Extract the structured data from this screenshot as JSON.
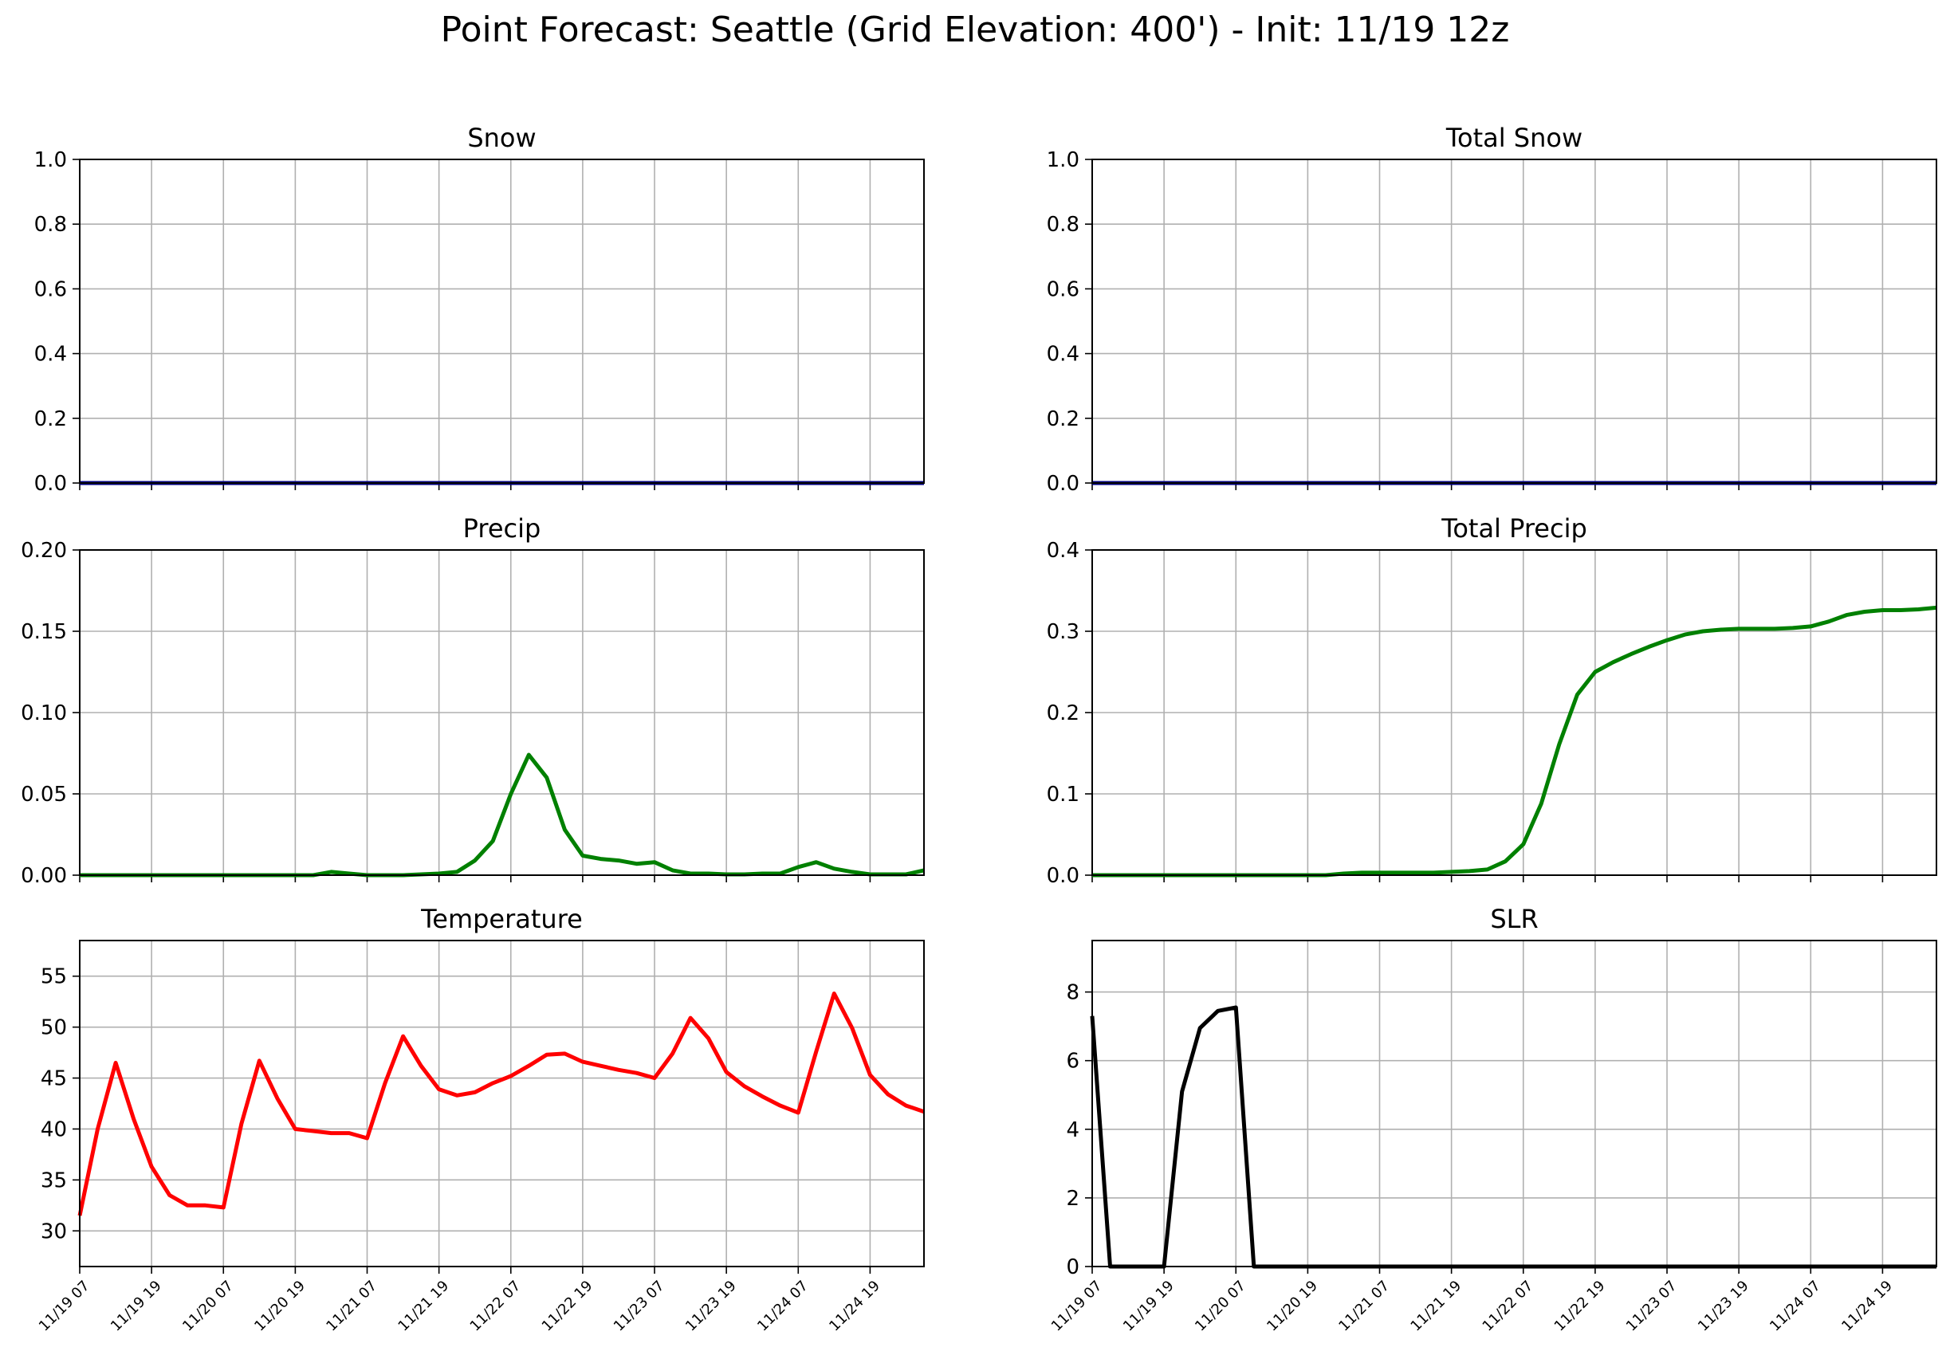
{
  "figure": {
    "title": "Point Forecast: Seattle (Grid Elevation: 400') - Init: 11/19 12z"
  },
  "chart_data": [
    {
      "id": "snow",
      "type": "line",
      "title": "Snow",
      "ylim": [
        0,
        1.0
      ],
      "yticks": [
        "0.0",
        "0.2",
        "0.4",
        "0.6",
        "0.8",
        "1.0"
      ],
      "ytick_values": [
        0,
        0.2,
        0.4,
        0.6,
        0.8,
        1.0
      ],
      "xticks": [
        "11/19 07",
        "11/19 19",
        "11/20 07",
        "11/20 19",
        "11/21 07",
        "11/21 19",
        "11/22 07",
        "11/22 19",
        "11/23 07",
        "11/23 19",
        "11/24 07",
        "11/24 19"
      ],
      "xtick_labels_visible": false,
      "grid": true,
      "color": "#000080",
      "series": [
        {
          "x": [
            0,
            141
          ],
          "y": [
            0,
            0
          ]
        }
      ]
    },
    {
      "id": "total-snow",
      "type": "line",
      "title": "Total Snow",
      "ylim": [
        0,
        1.0
      ],
      "yticks": [
        "0.0",
        "0.2",
        "0.4",
        "0.6",
        "0.8",
        "1.0"
      ],
      "ytick_values": [
        0,
        0.2,
        0.4,
        0.6,
        0.8,
        1.0
      ],
      "xticks": [
        "11/19 07",
        "11/19 19",
        "11/20 07",
        "11/20 19",
        "11/21 07",
        "11/21 19",
        "11/22 07",
        "11/22 19",
        "11/23 07",
        "11/23 19",
        "11/24 07",
        "11/24 19"
      ],
      "xtick_labels_visible": false,
      "grid": true,
      "color": "#000080",
      "series": [
        {
          "x": [
            0,
            141
          ],
          "y": [
            0,
            0
          ]
        }
      ]
    },
    {
      "id": "precip",
      "type": "line",
      "title": "Precip",
      "ylim": [
        0,
        0.2
      ],
      "yticks": [
        "0.00",
        "0.05",
        "0.10",
        "0.15",
        "0.20"
      ],
      "ytick_values": [
        0,
        0.05,
        0.1,
        0.15,
        0.2
      ],
      "xticks": [
        "11/19 07",
        "11/19 19",
        "11/20 07",
        "11/20 19",
        "11/21 07",
        "11/21 19",
        "11/22 07",
        "11/22 19",
        "11/23 07",
        "11/23 19",
        "11/24 07",
        "11/24 19"
      ],
      "xtick_labels_visible": false,
      "grid": true,
      "color": "#008000",
      "series": [
        {
          "x": [
            0,
            12,
            24,
            36,
            39,
            42,
            45,
            48,
            51,
            54,
            57,
            60,
            63,
            66,
            69,
            72,
            75,
            78,
            81,
            84,
            87,
            90,
            93,
            96,
            99,
            102,
            105,
            108,
            111,
            114,
            117,
            120,
            123,
            126,
            129,
            132,
            135,
            138,
            141
          ],
          "y": [
            0,
            0,
            0,
            0,
            0,
            0.002,
            0.001,
            0,
            0,
            0,
            0.0005,
            0.001,
            0.002,
            0.009,
            0.021,
            0.05,
            0.074,
            0.06,
            0.028,
            0.012,
            0.01,
            0.009,
            0.007,
            0.008,
            0.003,
            0.001,
            0.001,
            0.0005,
            0.0005,
            0.001,
            0.001,
            0.005,
            0.008,
            0.004,
            0.002,
            0.0005,
            0.0005,
            0.0005,
            0.003
          ]
        }
      ]
    },
    {
      "id": "total-precip",
      "type": "line",
      "title": "Total Precip",
      "ylim": [
        0,
        0.4
      ],
      "yticks": [
        "0.0",
        "0.1",
        "0.2",
        "0.3",
        "0.4"
      ],
      "ytick_values": [
        0,
        0.1,
        0.2,
        0.3,
        0.4
      ],
      "xticks": [
        "11/19 07",
        "11/19 19",
        "11/20 07",
        "11/20 19",
        "11/21 07",
        "11/21 19",
        "11/22 07",
        "11/22 19",
        "11/23 07",
        "11/23 19",
        "11/24 07",
        "11/24 19"
      ],
      "xtick_labels_visible": false,
      "grid": true,
      "color": "#008000",
      "series": [
        {
          "x": [
            0,
            12,
            24,
            36,
            39,
            42,
            45,
            48,
            51,
            54,
            57,
            60,
            63,
            66,
            69,
            72,
            75,
            78,
            81,
            84,
            87,
            90,
            93,
            96,
            99,
            102,
            105,
            108,
            111,
            114,
            117,
            120,
            123,
            126,
            129,
            132,
            135,
            138,
            141
          ],
          "y": [
            0,
            0,
            0,
            0,
            0,
            0.002,
            0.003,
            0.003,
            0.003,
            0.003,
            0.003,
            0.004,
            0.005,
            0.007,
            0.017,
            0.038,
            0.088,
            0.161,
            0.222,
            0.25,
            0.262,
            0.272,
            0.281,
            0.289,
            0.296,
            0.3,
            0.302,
            0.303,
            0.303,
            0.303,
            0.304,
            0.306,
            0.312,
            0.32,
            0.324,
            0.326,
            0.326,
            0.327,
            0.329
          ]
        }
      ]
    },
    {
      "id": "temperature",
      "type": "line",
      "title": "Temperature",
      "ylim": [
        26.5,
        58.5
      ],
      "yticks": [
        "30",
        "35",
        "40",
        "45",
        "50",
        "55"
      ],
      "ytick_values": [
        30,
        35,
        40,
        45,
        50,
        55
      ],
      "xticks": [
        "11/19 07",
        "11/19 19",
        "11/20 07",
        "11/20 19",
        "11/21 07",
        "11/21 19",
        "11/22 07",
        "11/22 19",
        "11/23 07",
        "11/23 19",
        "11/24 07",
        "11/24 19"
      ],
      "xtick_labels_visible": true,
      "grid": true,
      "color": "#ff0000",
      "series": [
        {
          "x": [
            0,
            3,
            6,
            9,
            12,
            15,
            18,
            21,
            24,
            27,
            30,
            33,
            36,
            39,
            42,
            45,
            48,
            51,
            54,
            57,
            60,
            63,
            66,
            69,
            72,
            75,
            78,
            81,
            84,
            87,
            90,
            93,
            96,
            99,
            102,
            105,
            108,
            111,
            114,
            117,
            120,
            123,
            126,
            129,
            132,
            135,
            138,
            141
          ],
          "y": [
            31.5,
            40.0,
            46.5,
            41.0,
            36.3,
            33.5,
            32.5,
            32.5,
            32.3,
            40.5,
            46.7,
            43.0,
            40.0,
            39.8,
            39.6,
            39.6,
            39.1,
            44.5,
            49.1,
            46.2,
            43.9,
            43.3,
            43.6,
            44.5,
            45.2,
            46.2,
            47.3,
            47.4,
            46.6,
            46.2,
            45.8,
            45.5,
            45.0,
            47.4,
            50.9,
            48.9,
            45.6,
            44.2,
            43.2,
            42.3,
            41.6,
            47.6,
            53.3,
            49.9,
            45.3,
            43.4,
            42.3,
            41.7
          ]
        }
      ]
    },
    {
      "id": "slr",
      "type": "line",
      "title": "SLR",
      "ylim": [
        0,
        9.5
      ],
      "yticks": [
        "0",
        "2",
        "4",
        "6",
        "8"
      ],
      "ytick_values": [
        0,
        2,
        4,
        6,
        8
      ],
      "xticks": [
        "11/19 07",
        "11/19 19",
        "11/20 07",
        "11/20 19",
        "11/21 07",
        "11/21 19",
        "11/22 07",
        "11/22 19",
        "11/23 07",
        "11/23 19",
        "11/24 07",
        "11/24 19"
      ],
      "xtick_labels_visible": true,
      "grid": true,
      "color": "#000000",
      "series": [
        {
          "x": [
            0,
            3,
            6,
            9,
            12,
            15,
            18,
            21,
            24,
            27,
            30,
            33,
            36,
            39,
            141
          ],
          "y": [
            7.3,
            0,
            0,
            0,
            0,
            5.1,
            6.95,
            7.45,
            7.55,
            0,
            0,
            0,
            0,
            0,
            0
          ]
        }
      ]
    }
  ]
}
